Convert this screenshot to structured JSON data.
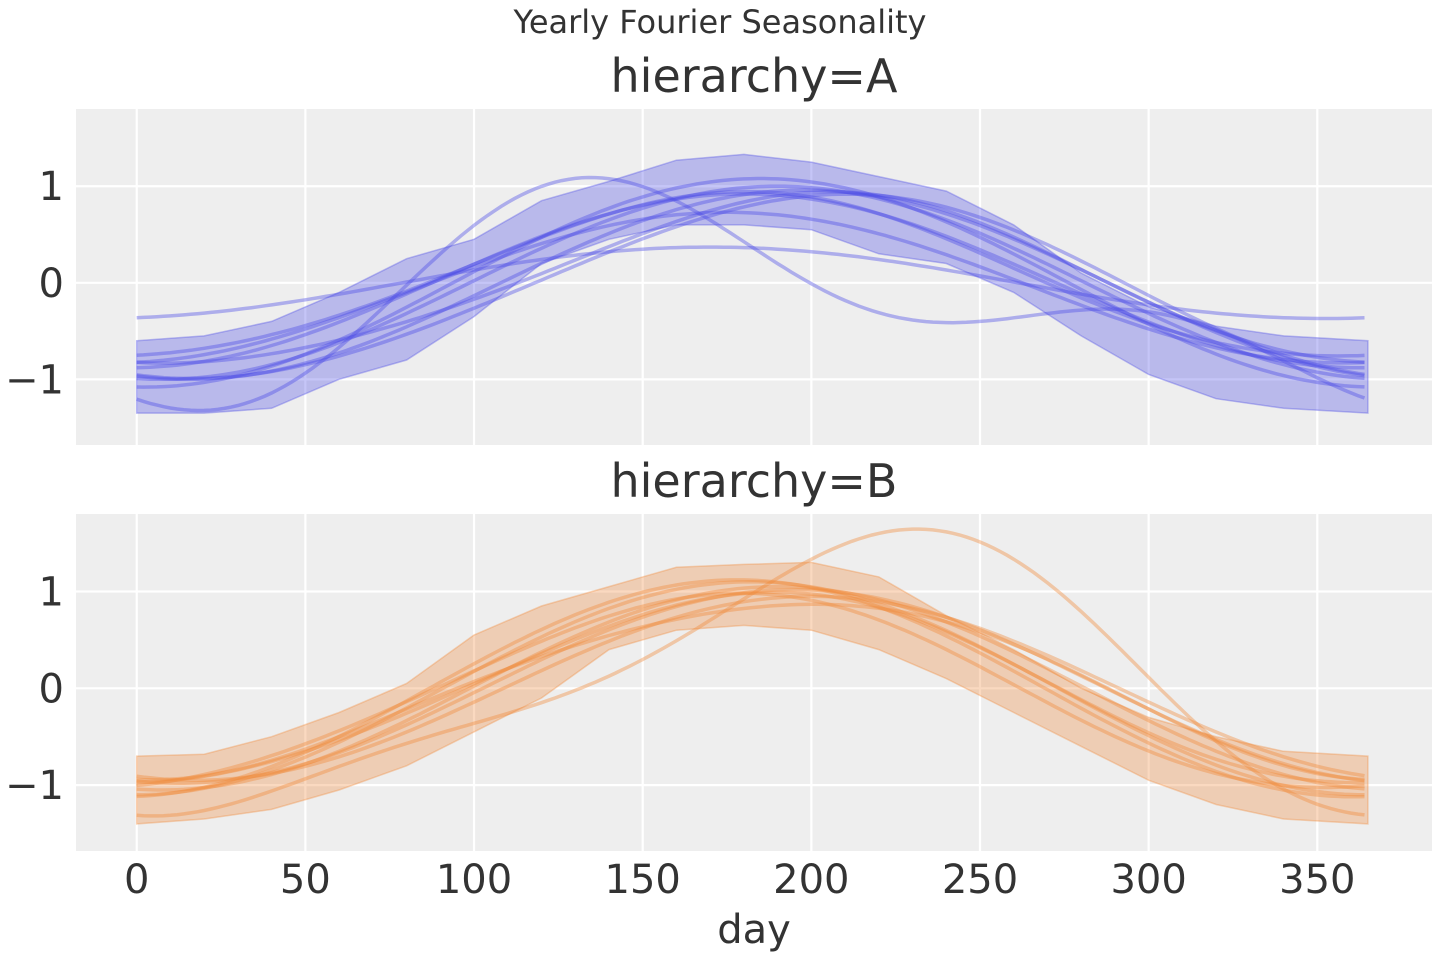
{
  "suptitle": "Yearly Fourier Seasonality",
  "xlabel": "day",
  "xlim": [
    -18,
    384
  ],
  "xticks": [
    0,
    50,
    100,
    150,
    200,
    250,
    300,
    350
  ],
  "yticks": [
    -1,
    0,
    1
  ],
  "yticklabels": [
    "−1",
    "0",
    "1"
  ],
  "grid": true,
  "chart_data": [
    {
      "type": "line",
      "title": "hierarchy=A",
      "ylim": [
        -1.68,
        1.8
      ],
      "color": "#4a4ae6",
      "band": {
        "x": [
          0,
          20,
          40,
          60,
          80,
          100,
          120,
          140,
          160,
          180,
          200,
          220,
          240,
          260,
          280,
          300,
          320,
          340,
          365
        ],
        "upper": [
          -0.6,
          -0.55,
          -0.4,
          -0.1,
          0.25,
          0.45,
          0.85,
          1.05,
          1.27,
          1.33,
          1.25,
          1.1,
          0.95,
          0.6,
          0.1,
          -0.25,
          -0.45,
          -0.55,
          -0.6
        ],
        "lower": [
          -1.35,
          -1.35,
          -1.3,
          -1.0,
          -0.8,
          -0.35,
          0.2,
          0.45,
          0.6,
          0.6,
          0.55,
          0.3,
          0.2,
          -0.1,
          -0.55,
          -0.95,
          -1.2,
          -1.3,
          -1.35
        ]
      },
      "series": [
        {
          "mean": 0,
          "amp": 1.0,
          "peak": 190,
          "a2": 0.0,
          "p2": 0
        },
        {
          "mean": 0,
          "amp": 1.08,
          "peak": 185,
          "a2": 0.0,
          "p2": 0
        },
        {
          "mean": -0.02,
          "amp": 0.98,
          "peak": 198,
          "a2": 0.0,
          "p2": 0
        },
        {
          "mean": 0.02,
          "amp": 0.9,
          "peak": 180,
          "a2": 0.0,
          "p2": 0
        },
        {
          "mean": 0,
          "amp": 0.88,
          "peak": 200,
          "a2": 0.08,
          "p2": 40
        },
        {
          "mean": -0.05,
          "amp": 0.78,
          "peak": 175,
          "a2": 0.0,
          "p2": 0
        },
        {
          "mean": 0.05,
          "amp": 0.85,
          "peak": 178,
          "a2": 0.05,
          "p2": 10
        },
        {
          "mean": -0.05,
          "amp": 0.95,
          "peak": 205,
          "a2": 0.05,
          "p2": 60
        },
        {
          "mean": 0,
          "amp": 0.37,
          "peak": 170,
          "a2": 0.0,
          "p2": 0
        },
        {
          "mean": -0.2,
          "amp": 0.85,
          "peak": 160,
          "a2": 0.55,
          "p2": 125
        }
      ]
    },
    {
      "type": "line",
      "title": "hierarchy=B",
      "ylim": [
        -1.68,
        1.8
      ],
      "color": "#f08a3a",
      "band": {
        "x": [
          0,
          20,
          40,
          60,
          80,
          100,
          120,
          140,
          160,
          180,
          200,
          220,
          240,
          260,
          280,
          300,
          320,
          340,
          365
        ],
        "upper": [
          -0.7,
          -0.68,
          -0.5,
          -0.25,
          0.05,
          0.55,
          0.85,
          1.05,
          1.25,
          1.28,
          1.3,
          1.15,
          0.75,
          0.4,
          0.0,
          -0.3,
          -0.5,
          -0.65,
          -0.7
        ],
        "lower": [
          -1.4,
          -1.35,
          -1.25,
          -1.05,
          -0.8,
          -0.45,
          -0.1,
          0.4,
          0.6,
          0.65,
          0.6,
          0.4,
          0.1,
          -0.25,
          -0.6,
          -0.95,
          -1.2,
          -1.35,
          -1.4
        ]
      },
      "series": [
        {
          "mean": 0,
          "amp": 1.05,
          "peak": 190,
          "a2": 0.0,
          "p2": 0
        },
        {
          "mean": 0,
          "amp": 1.1,
          "peak": 182,
          "a2": 0.0,
          "p2": 0
        },
        {
          "mean": 0.02,
          "amp": 1.0,
          "peak": 195,
          "a2": 0.0,
          "p2": 0
        },
        {
          "mean": -0.02,
          "amp": 0.98,
          "peak": 185,
          "a2": 0.05,
          "p2": 30
        },
        {
          "mean": 0,
          "amp": 1.12,
          "peak": 178,
          "a2": 0.0,
          "p2": 0
        },
        {
          "mean": 0,
          "amp": 0.95,
          "peak": 200,
          "a2": 0.0,
          "p2": 0
        },
        {
          "mean": 0.02,
          "amp": 0.9,
          "peak": 192,
          "a2": 0.08,
          "p2": 80
        },
        {
          "mean": -0.05,
          "amp": 1.0,
          "peak": 175,
          "a2": 0.05,
          "p2": 20
        },
        {
          "mean": 0.05,
          "amp": 1.35,
          "peak": 215,
          "a2": 0.35,
          "p2": 65
        }
      ]
    }
  ]
}
